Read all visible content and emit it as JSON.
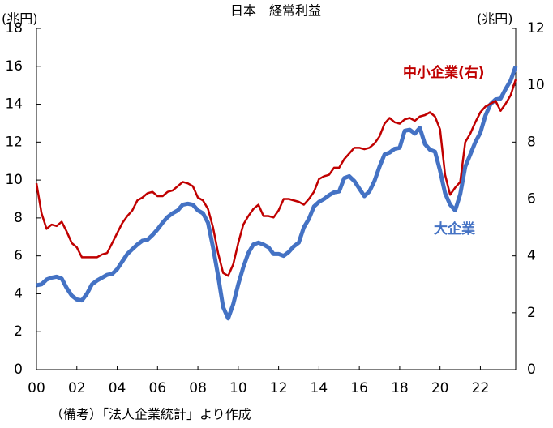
{
  "chart_data": {
    "type": "line",
    "title": "日本　経常利益",
    "y_label": "(兆円)",
    "y2_label": "(兆円)",
    "note": "（備考）「法人企業統計」より作成",
    "x": [
      2000,
      2000.25,
      2000.5,
      2000.75,
      2001,
      2001.25,
      2001.5,
      2001.75,
      2002,
      2002.25,
      2002.5,
      2002.75,
      2003,
      2003.25,
      2003.5,
      2003.75,
      2004,
      2004.25,
      2004.5,
      2004.75,
      2005,
      2005.25,
      2005.5,
      2005.75,
      2006,
      2006.25,
      2006.5,
      2006.75,
      2007,
      2007.25,
      2007.5,
      2007.75,
      2008,
      2008.25,
      2008.5,
      2008.75,
      2009,
      2009.25,
      2009.5,
      2009.75,
      2010,
      2010.25,
      2010.5,
      2010.75,
      2011,
      2011.25,
      2011.5,
      2011.75,
      2012,
      2012.25,
      2012.5,
      2012.75,
      2013,
      2013.25,
      2013.5,
      2013.75,
      2014,
      2014.25,
      2014.5,
      2014.75,
      2015,
      2015.25,
      2015.5,
      2015.75,
      2016,
      2016.25,
      2016.5,
      2016.75,
      2017,
      2017.25,
      2017.5,
      2017.75,
      2018,
      2018.25,
      2018.5,
      2018.75,
      2019,
      2019.25,
      2019.5,
      2019.75,
      2020,
      2020.25,
      2020.5,
      2020.75,
      2021,
      2021.25,
      2021.5,
      2021.75,
      2022,
      2022.25,
      2022.5,
      2022.75,
      2023,
      2023.25,
      2023.5,
      2023.75
    ],
    "series": [
      {
        "name": "大企業",
        "color": "#4472c4",
        "axis": "y",
        "values": [
          4.45,
          4.5,
          4.75,
          4.85,
          4.9,
          4.8,
          4.3,
          3.9,
          3.7,
          3.65,
          4.0,
          4.5,
          4.7,
          4.85,
          5.0,
          5.05,
          5.3,
          5.7,
          6.1,
          6.35,
          6.6,
          6.8,
          6.85,
          7.1,
          7.4,
          7.75,
          8.05,
          8.25,
          8.4,
          8.7,
          8.75,
          8.7,
          8.4,
          8.25,
          7.75,
          6.45,
          4.95,
          3.3,
          2.7,
          3.45,
          4.5,
          5.4,
          6.15,
          6.6,
          6.7,
          6.6,
          6.45,
          6.1,
          6.1,
          6.0,
          6.2,
          6.5,
          6.7,
          7.5,
          7.95,
          8.6,
          8.85,
          9.0,
          9.2,
          9.35,
          9.4,
          10.1,
          10.2,
          9.95,
          9.55,
          9.15,
          9.4,
          9.95,
          10.7,
          11.35,
          11.45,
          11.65,
          11.7,
          12.6,
          12.65,
          12.45,
          12.75,
          11.9,
          11.6,
          11.5,
          10.5,
          9.3,
          8.7,
          8.4,
          9.25,
          10.7,
          11.35,
          12.0,
          12.5,
          13.4,
          14.0,
          14.25,
          14.3,
          14.8,
          15.25,
          16.0
        ]
      },
      {
        "name": "中小企業(右)",
        "color": "#c00000",
        "axis": "y2",
        "values": [
          6.55,
          5.5,
          4.95,
          5.1,
          5.05,
          5.2,
          4.85,
          4.45,
          4.3,
          3.95,
          3.95,
          3.95,
          3.95,
          4.05,
          4.1,
          4.45,
          4.8,
          5.15,
          5.4,
          5.6,
          5.95,
          6.05,
          6.2,
          6.25,
          6.1,
          6.1,
          6.25,
          6.3,
          6.45,
          6.6,
          6.55,
          6.45,
          6.05,
          5.95,
          5.65,
          5.0,
          4.1,
          3.4,
          3.3,
          3.7,
          4.45,
          5.1,
          5.4,
          5.65,
          5.8,
          5.4,
          5.4,
          5.35,
          5.6,
          6.0,
          6.0,
          5.95,
          5.9,
          5.8,
          6.0,
          6.25,
          6.7,
          6.8,
          6.85,
          7.1,
          7.1,
          7.4,
          7.6,
          7.8,
          7.8,
          7.75,
          7.8,
          7.95,
          8.2,
          8.65,
          8.85,
          8.7,
          8.65,
          8.8,
          8.85,
          8.75,
          8.9,
          8.95,
          9.05,
          8.9,
          8.45,
          6.85,
          6.15,
          6.4,
          6.6,
          8.0,
          8.3,
          8.7,
          9.05,
          9.25,
          9.35,
          9.45,
          9.1,
          9.35,
          9.65,
          10.2
        ]
      }
    ],
    "xlim": [
      2000,
      2023.75
    ],
    "xticks": [
      {
        "value": 2000,
        "label": "00"
      },
      {
        "value": 2002,
        "label": "02"
      },
      {
        "value": 2004,
        "label": "04"
      },
      {
        "value": 2006,
        "label": "06"
      },
      {
        "value": 2008,
        "label": "08"
      },
      {
        "value": 2010,
        "label": "10"
      },
      {
        "value": 2012,
        "label": "12"
      },
      {
        "value": 2014,
        "label": "14"
      },
      {
        "value": 2016,
        "label": "16"
      },
      {
        "value": 2018,
        "label": "18"
      },
      {
        "value": 2020,
        "label": "20"
      },
      {
        "value": 2022,
        "label": "22"
      }
    ],
    "ylim": [
      0,
      18
    ],
    "yticks": [
      0,
      2,
      4,
      6,
      8,
      10,
      12,
      14,
      16,
      18
    ],
    "y2lim": [
      0,
      12
    ],
    "y2ticks": [
      0,
      2,
      4,
      6,
      8,
      10,
      12
    ]
  }
}
